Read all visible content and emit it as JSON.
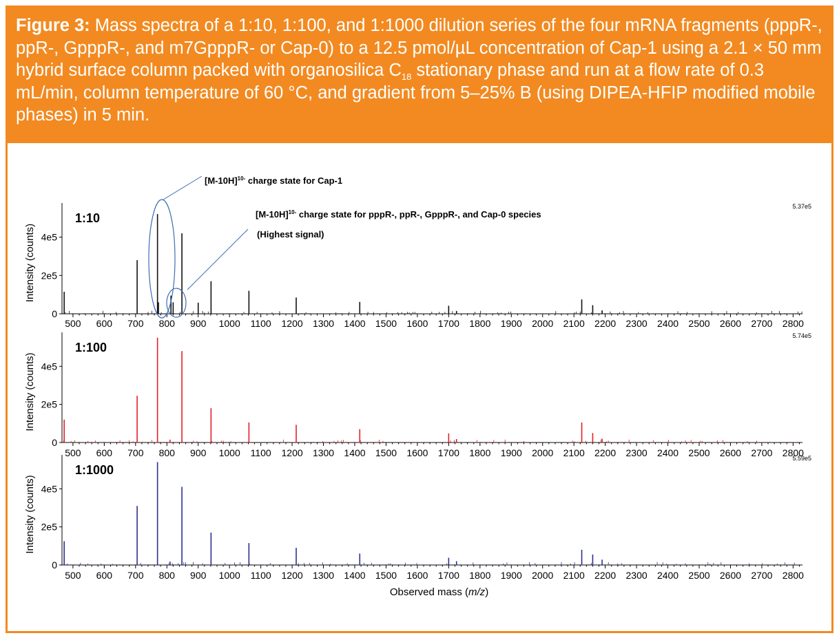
{
  "caption": {
    "label": "Figure 3:",
    "text_1": "Mass spectra of a 1:10, 1:100, and 1:1000 dilution series of the four mRNA fragments (pppR-, ppR-, GpppR-, and m7GpppR- or Cap-0) to a 12.5 pmol/µL concentration of Cap-1 using a 2.1 × 50 mm hybrid surface column packed with organosilica C",
    "subscript": "18",
    "text_2": " stationary phase and run at a flow rate of 0.3 mL/min, column temperature of 60 °C, and gradient from 5–25% B (using DIPEA-HFIP modified mobile phases) in 5 min."
  },
  "colors": {
    "accent": "#f28a21",
    "panel_1": "#111111",
    "panel_2": "#e0202a",
    "panel_3": "#2b2f8f",
    "annotation": "#3b6db3"
  },
  "annotations": {
    "cap1_label": "[M-10H]",
    "cap1_sup": "10-",
    "cap1_text": " charge state for Cap-1",
    "species_label": "[M-10H]",
    "species_sup": "10-",
    "species_text": " charge state for pppR-, ppR-, GpppR-, and Cap-0 species",
    "species_note": "(Highest signal)"
  },
  "chart_data": [
    {
      "type": "line",
      "panel_label": "1:10",
      "max_intensity_label": "5.37e5",
      "ylabel": "Intensity (counts)",
      "yticks": [
        "0",
        "2e5",
        "4e5"
      ],
      "xlim": [
        465,
        2830
      ],
      "ylim": [
        0,
        560000
      ],
      "peaks": [
        [
          472,
          115000
        ],
        [
          705,
          280000
        ],
        [
          770,
          520000
        ],
        [
          773,
          60000
        ],
        [
          813,
          95000
        ],
        [
          820,
          60000
        ],
        [
          848,
          420000
        ],
        [
          900,
          58000
        ],
        [
          941,
          170000
        ],
        [
          1062,
          120000
        ],
        [
          1213,
          85000
        ],
        [
          1416,
          62000
        ],
        [
          1700,
          42000
        ],
        [
          1725,
          15000
        ],
        [
          2125,
          75000
        ],
        [
          2160,
          45000
        ],
        [
          2190,
          18000
        ]
      ]
    },
    {
      "type": "line",
      "panel_label": "1:100",
      "max_intensity_label": "5.74e5",
      "ylabel": "Intensity (counts)",
      "yticks": [
        "0",
        "2e5",
        "4e5"
      ],
      "xlim": [
        465,
        2830
      ],
      "ylim": [
        0,
        560000
      ],
      "peaks": [
        [
          472,
          120000
        ],
        [
          705,
          245000
        ],
        [
          770,
          550000
        ],
        [
          810,
          15000
        ],
        [
          848,
          480000
        ],
        [
          941,
          180000
        ],
        [
          1062,
          105000
        ],
        [
          1213,
          93000
        ],
        [
          1416,
          70000
        ],
        [
          1700,
          48000
        ],
        [
          1725,
          18000
        ],
        [
          2125,
          105000
        ],
        [
          2160,
          50000
        ],
        [
          2190,
          20000
        ]
      ]
    },
    {
      "type": "line",
      "panel_label": "1:1000",
      "max_intensity_label": "5.59e5",
      "ylabel": "Intensity (counts)",
      "yticks": [
        "0",
        "2e5",
        "4e5"
      ],
      "xlim": [
        465,
        2830
      ],
      "ylim": [
        0,
        560000
      ],
      "xlabel_main": "Observed mass (",
      "xlabel_italic": "m/z",
      "xlabel_end": ")",
      "peaks": [
        [
          472,
          125000
        ],
        [
          705,
          310000
        ],
        [
          770,
          540000
        ],
        [
          810,
          18000
        ],
        [
          848,
          410000
        ],
        [
          941,
          170000
        ],
        [
          1062,
          115000
        ],
        [
          1213,
          90000
        ],
        [
          1416,
          60000
        ],
        [
          1700,
          38000
        ],
        [
          1725,
          20000
        ],
        [
          2125,
          80000
        ],
        [
          2160,
          55000
        ],
        [
          2190,
          28000
        ]
      ]
    }
  ],
  "xticks": [
    "500",
    "600",
    "700",
    "800",
    "900",
    "1000",
    "1100",
    "1200",
    "1300",
    "1400",
    "1500",
    "1600",
    "1700",
    "1800",
    "1900",
    "2000",
    "2100",
    "2200",
    "2300",
    "2400",
    "2500",
    "2600",
    "2700",
    "2800"
  ]
}
